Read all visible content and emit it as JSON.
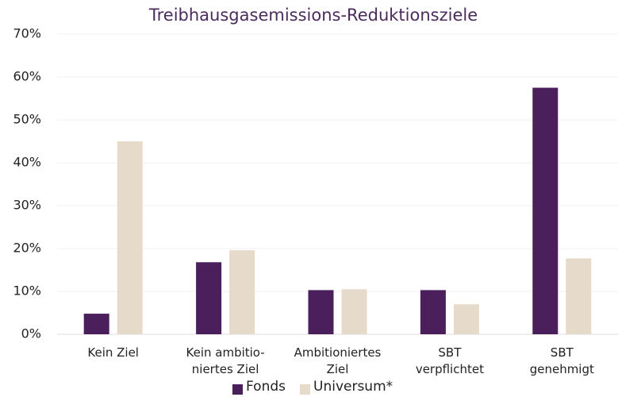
{
  "chart_data": {
    "type": "bar",
    "title": "Treibhausgasemissions-Reduktionsziele",
    "categories": [
      "Kein Ziel",
      "Kein ambitio-\nniertes Ziel",
      "Ambitioniertes\nZiel",
      "SBT\nverpflichtet",
      "SBT\ngenehmigt"
    ],
    "series": [
      {
        "name": "Fonds",
        "color": "#4a1f5c",
        "values": [
          4.8,
          16.8,
          10.3,
          10.3,
          57.5
        ]
      },
      {
        "name": "Universum*",
        "color": "#e6dacb",
        "values": [
          45,
          19.6,
          10.5,
          7,
          17.7
        ]
      }
    ],
    "ylim": [
      0,
      70
    ],
    "yticks": [
      {
        "value": 0,
        "label": "0%"
      },
      {
        "value": 10,
        "label": "10%"
      },
      {
        "value": 20,
        "label": "20%"
      },
      {
        "value": 30,
        "label": "30%"
      },
      {
        "value": 40,
        "label": "40%"
      },
      {
        "value": 50,
        "label": "50%"
      },
      {
        "value": 60,
        "label": "60%"
      },
      {
        "value": 70,
        "label": "70%"
      }
    ],
    "grid": true
  }
}
